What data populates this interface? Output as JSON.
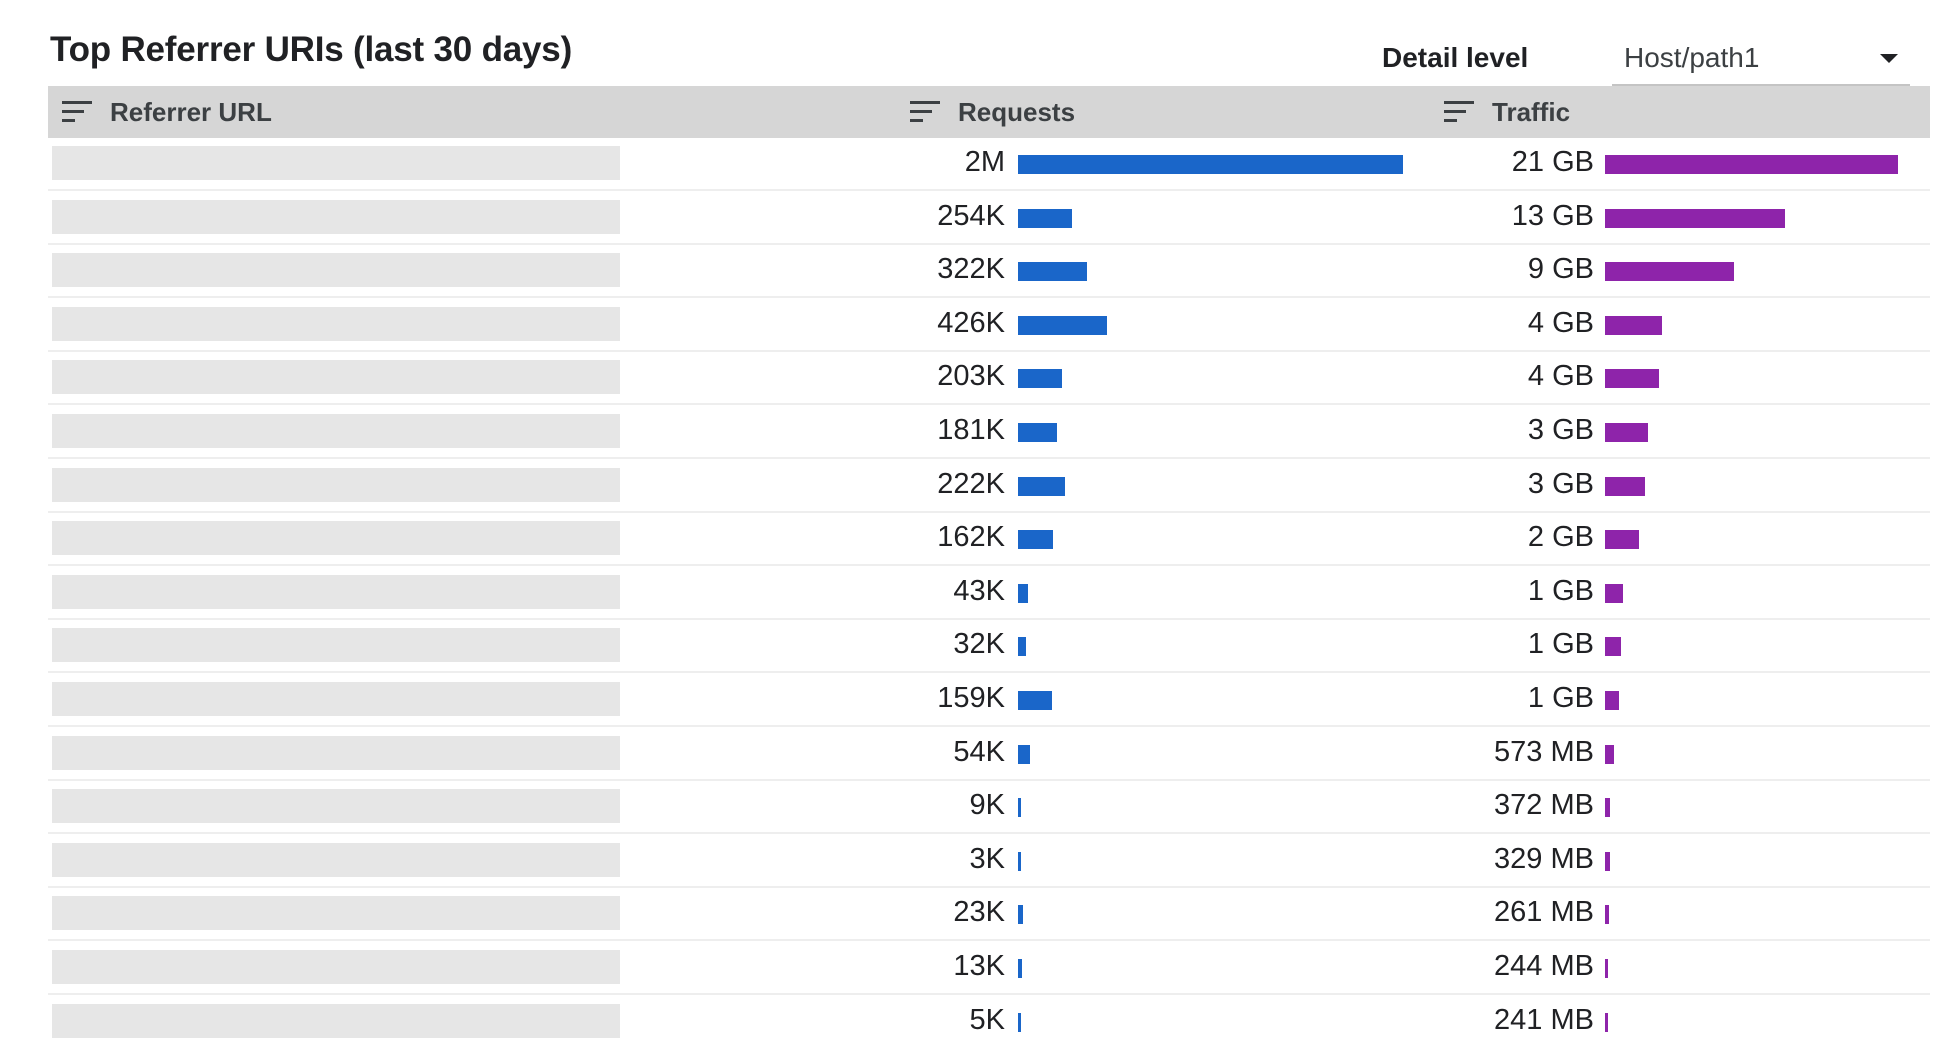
{
  "header": {
    "title": "Top Referrer URIs (last 30 days)",
    "detail_level_label": "Detail level",
    "detail_level_value": "Host/path1"
  },
  "columns": {
    "referrer_url": "Referrer URL",
    "requests": "Requests",
    "traffic": "Traffic"
  },
  "colors": {
    "requests_bar": "#1a66c9",
    "traffic_bar": "#8e24aa",
    "header_bg": "#d6d6d6"
  },
  "icons": {
    "sort": "sort-icon",
    "dropdown": "chevron-down-icon"
  },
  "rows": [
    {
      "requests": "2M",
      "traffic": "21 GB",
      "requests_bar": 1.0,
      "traffic_bar": 1.0
    },
    {
      "requests": "254K",
      "traffic": "13 GB",
      "requests_bar": 0.14,
      "traffic_bar": 0.614
    },
    {
      "requests": "322K",
      "traffic": "9 GB",
      "requests_bar": 0.178,
      "traffic_bar": 0.441
    },
    {
      "requests": "426K",
      "traffic": "4 GB",
      "requests_bar": 0.231,
      "traffic_bar": 0.195
    },
    {
      "requests": "203K",
      "traffic": "4 GB",
      "requests_bar": 0.113,
      "traffic_bar": 0.186
    },
    {
      "requests": "181K",
      "traffic": "3 GB",
      "requests_bar": 0.1,
      "traffic_bar": 0.148
    },
    {
      "requests": "222K",
      "traffic": "3 GB",
      "requests_bar": 0.123,
      "traffic_bar": 0.136
    },
    {
      "requests": "162K",
      "traffic": "2 GB",
      "requests_bar": 0.09,
      "traffic_bar": 0.115
    },
    {
      "requests": "43K",
      "traffic": "1 GB",
      "requests_bar": 0.026,
      "traffic_bar": 0.062
    },
    {
      "requests": "32K",
      "traffic": "1 GB",
      "requests_bar": 0.02,
      "traffic_bar": 0.054
    },
    {
      "requests": "159K",
      "traffic": "1 GB",
      "requests_bar": 0.088,
      "traffic_bar": 0.048
    },
    {
      "requests": "54K",
      "traffic": "573 MB",
      "requests_bar": 0.03,
      "traffic_bar": 0.03
    },
    {
      "requests": "9K",
      "traffic": "372 MB",
      "requests_bar": 0.0065,
      "traffic_bar": 0.018
    },
    {
      "requests": "3K",
      "traffic": "329 MB",
      "requests_bar": 0.0065,
      "traffic_bar": 0.016
    },
    {
      "requests": "23K",
      "traffic": "261 MB",
      "requests_bar": 0.013,
      "traffic_bar": 0.012
    },
    {
      "requests": "13K",
      "traffic": "244 MB",
      "requests_bar": 0.01,
      "traffic_bar": 0.011
    },
    {
      "requests": "5K",
      "traffic": "241 MB",
      "requests_bar": 0.0065,
      "traffic_bar": 0.011
    }
  ]
}
